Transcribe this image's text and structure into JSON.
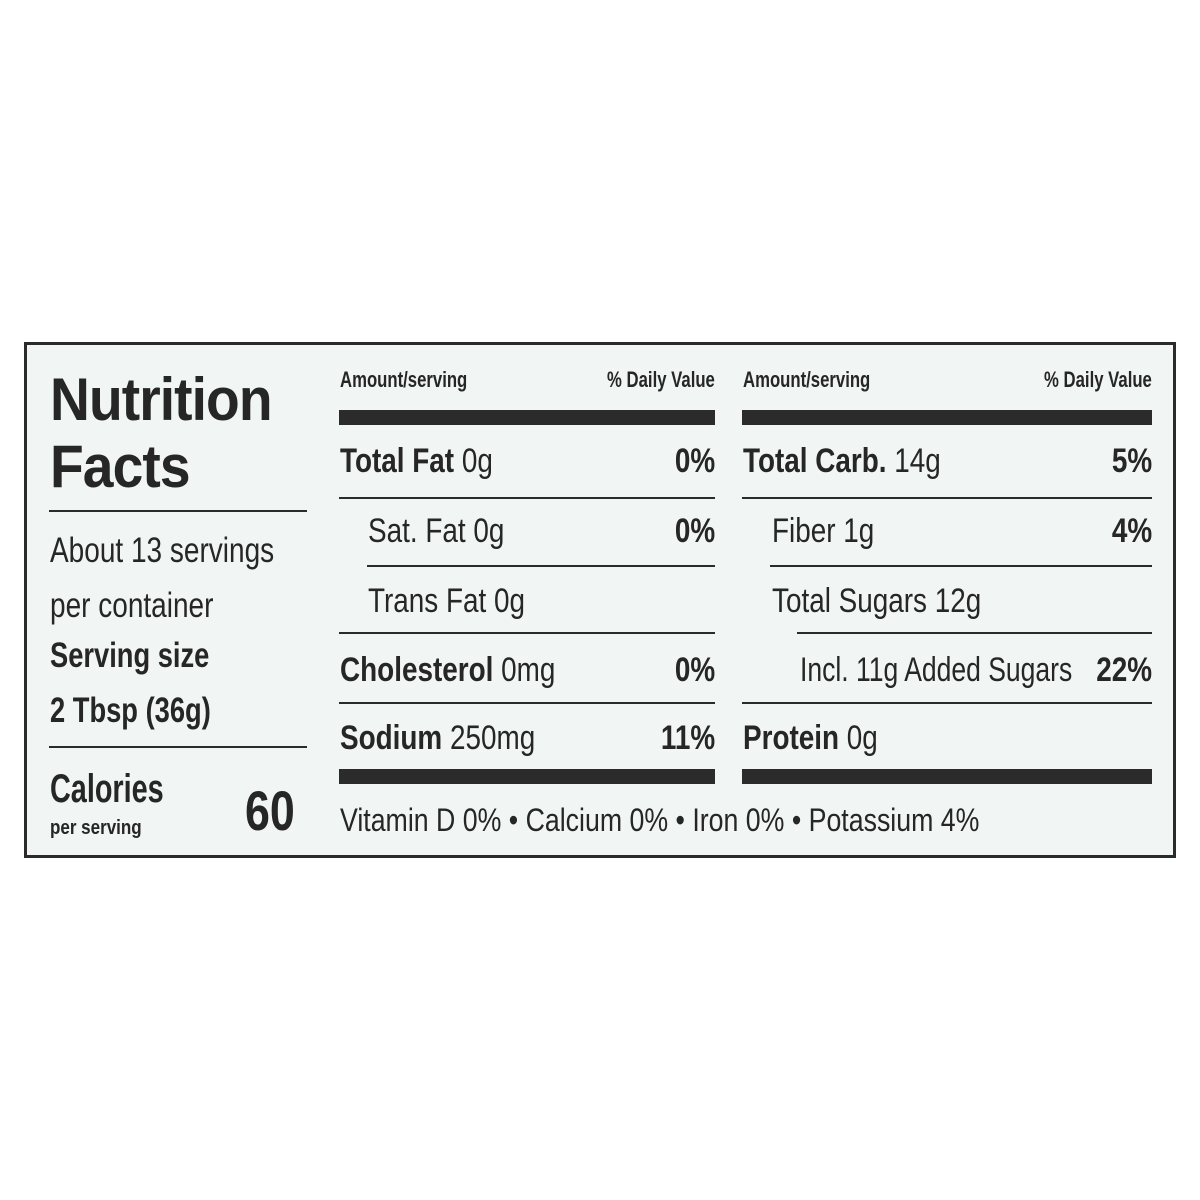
{
  "title_line1": "Nutrition",
  "title_line2": "Facts",
  "servings_line1": "About 13 servings",
  "servings_line2": "per container",
  "serving_size_label": "Serving size",
  "serving_size_value": "2 Tbsp (36g)",
  "calories_label": "Calories",
  "calories_sub": "per serving",
  "calories_value": "60",
  "header_amount": "Amount/serving",
  "header_dv": "% Daily Value",
  "left_rows": [
    {
      "name": "Total Fat",
      "amount": "0g",
      "dv": "0%"
    },
    {
      "name": "Sat. Fat",
      "amount": "0g",
      "dv": "0%"
    },
    {
      "name": "Trans Fat",
      "amount": "0g",
      "dv": ""
    },
    {
      "name": "Cholesterol",
      "amount": "0mg",
      "dv": "0%"
    },
    {
      "name": "Sodium",
      "amount": "250mg",
      "dv": "11%"
    }
  ],
  "right_rows": [
    {
      "name": "Total Carb.",
      "amount": "14g",
      "dv": "5%"
    },
    {
      "name": "Fiber",
      "amount": "1g",
      "dv": "4%"
    },
    {
      "name": "Total Sugars",
      "amount": "12g",
      "dv": ""
    },
    {
      "name": "Incl. 11g Added Sugars",
      "amount": "",
      "dv": "22%"
    },
    {
      "name": "Protein",
      "amount": "0g",
      "dv": ""
    }
  ],
  "vitamins": "Vitamin D 0% • Calcium 0% • Iron 0% • Potassium 4%"
}
